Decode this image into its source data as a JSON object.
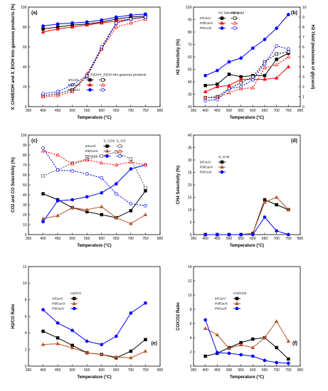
{
  "chart_data": [
    {
      "type": "line",
      "panel_label": "(a)",
      "xlabel": "Temperature (°C)",
      "ylabel": "X_CH4/EtOH and X_EtOH into gaseous products (%)",
      "xlim": [
        350,
        800
      ],
      "xticks": [
        350,
        400,
        450,
        500,
        550,
        600,
        650,
        700,
        750,
        800
      ],
      "ylim": [
        0,
        100
      ],
      "yticks": [
        0,
        20,
        40,
        60,
        80,
        100
      ],
      "legend_header": [
        "X_EtOH",
        "X_EtOH into gaseous products"
      ],
      "legend_labels": [
        "Ir/CeAl",
        "Pd/CeAl",
        "Pt/CeAl"
      ],
      "x": [
        400,
        450,
        500,
        550,
        600,
        650,
        700,
        750
      ],
      "series": [
        {
          "name": "Ir/CeAl",
          "color": "#000000",
          "marker": "square",
          "dash": false,
          "values": [
            78,
            80,
            82,
            83,
            85,
            88,
            90,
            91
          ]
        },
        {
          "name": "Pd/CeAl",
          "color": "#ff0000",
          "marker": "triangle",
          "dash": false,
          "values": [
            75,
            78,
            80,
            82,
            84,
            86,
            88,
            90
          ]
        },
        {
          "name": "Pt/CeAl",
          "color": "#0000ff",
          "marker": "circle",
          "dash": false,
          "values": [
            81,
            83,
            84,
            85,
            87,
            90,
            92,
            93
          ]
        },
        {
          "name": "Ir/CeAl",
          "color": "#000000",
          "marker": "square-open",
          "dash": true,
          "values": [
            11,
            13,
            17,
            30,
            58,
            84,
            88,
            90
          ]
        },
        {
          "name": "Pd/CeAl",
          "color": "#ff0000",
          "marker": "triangle-open",
          "dash": true,
          "values": [
            10,
            11,
            15,
            33,
            58,
            80,
            84,
            88
          ]
        },
        {
          "name": "Pt/CeAl",
          "color": "#0000ff",
          "marker": "circle-open",
          "dash": true,
          "values": [
            13,
            15,
            22,
            31,
            60,
            84,
            88,
            90
          ]
        }
      ]
    },
    {
      "type": "line",
      "panel_label": "(b)",
      "xlabel": "Temperature (°C)",
      "ylabel": "H2 Selectivity (%)",
      "ylabel2": "H2 Yield (mole/mole of glycerol)",
      "xlim": [
        350,
        800
      ],
      "xticks": [
        350,
        400,
        450,
        500,
        550,
        600,
        650,
        700,
        750,
        800
      ],
      "ylim": [
        20,
        100
      ],
      "yticks": [
        20,
        30,
        40,
        50,
        60,
        70,
        80,
        90,
        100
      ],
      "y2lim": [
        0,
        10
      ],
      "y2ticks": [
        0,
        1,
        2,
        3,
        4,
        5,
        6,
        7,
        8,
        9,
        10
      ],
      "legend_header": [
        "H2 Selectivity",
        "H2 Yield"
      ],
      "legend_labels": [
        "Ir/CeAl",
        "Pd/CeAl",
        "Pt/CeAl"
      ],
      "x": [
        400,
        450,
        500,
        550,
        600,
        650,
        700,
        750
      ],
      "series": [
        {
          "name": "Ir/CeAl",
          "color": "#000000",
          "marker": "square",
          "dash": false,
          "values": [
            37,
            38,
            46,
            44,
            45,
            45,
            58,
            63
          ]
        },
        {
          "name": "Pd/CeAl",
          "color": "#ff0000",
          "marker": "triangle",
          "dash": false,
          "values": [
            32,
            36,
            37,
            42,
            42,
            42,
            43,
            52
          ]
        },
        {
          "name": "Pt/CeAl",
          "color": "#0000ff",
          "marker": "circle",
          "dash": false,
          "values": [
            45,
            49,
            56,
            59,
            67,
            74,
            83,
            94
          ]
        },
        {
          "name": "Ir/CeAl",
          "color": "#000000",
          "marker": "square-open",
          "dash": true,
          "axis": "right",
          "values": [
            0.9,
            1.0,
            1.8,
            2.4,
            3.0,
            4.5,
            5.3,
            5.5
          ]
        },
        {
          "name": "Pd/CeAl",
          "color": "#ff0000",
          "marker": "triangle-open",
          "dash": true,
          "axis": "right",
          "values": [
            0.9,
            0.9,
            1.4,
            1.8,
            1.9,
            3.9,
            4.2,
            5.0
          ]
        },
        {
          "name": "Pt/CeAl",
          "color": "#0000ff",
          "marker": "circle-open",
          "dash": true,
          "axis": "right",
          "values": [
            0.6,
            0.7,
            1.8,
            2.0,
            2.7,
            4.3,
            6.1,
            5.8
          ]
        }
      ]
    },
    {
      "type": "line",
      "panel_label": "(c)",
      "xlabel": "Temperature (°C)",
      "ylabel": "CO2 and CO Selectivity (%)",
      "xlim": [
        350,
        800
      ],
      "xticks": [
        350,
        400,
        450,
        500,
        550,
        600,
        650,
        700,
        750,
        800
      ],
      "ylim": [
        0,
        100
      ],
      "yticks": [
        0,
        10,
        20,
        30,
        40,
        50,
        60,
        70,
        80,
        90,
        100
      ],
      "legend_header": [
        "S_CO2",
        "S_CO"
      ],
      "legend_labels": [
        "Ir/CeAl",
        "Pd/CeAl",
        "Pt/CeAl"
      ],
      "x": [
        400,
        450,
        500,
        550,
        600,
        650,
        700,
        750
      ],
      "series": [
        {
          "name": "Ir/CeAl",
          "color": "#000000",
          "marker": "square",
          "dash": false,
          "values": [
            41,
            35,
            27,
            23,
            20,
            17,
            24,
            44
          ]
        },
        {
          "name": "Pd/CeAl",
          "color": "#b5562a",
          "marker": "triangle",
          "dash": false,
          "values": [
            16,
            19,
            27,
            25,
            28,
            17,
            11,
            20
          ]
        },
        {
          "name": "Pt/CeAl",
          "color": "#0000ff",
          "marker": "circle",
          "dash": false,
          "values": [
            13,
            34,
            35,
            38,
            42,
            51,
            66,
            70
          ]
        },
        {
          "name": "Ir/CeAl",
          "color": "#555555",
          "marker": "square-open",
          "dash": true,
          "values": [
            59,
            65,
            72,
            76,
            79,
            83,
            76,
            47
          ]
        },
        {
          "name": "Pd/CeAl",
          "color": "#ff0000",
          "marker": "triangle-open",
          "dash": true,
          "values": [
            84,
            80,
            71,
            75,
            72,
            70,
            73,
            70
          ]
        },
        {
          "name": "Pt/CeAl",
          "color": "#0000ff",
          "marker": "circle-open",
          "dash": true,
          "values": [
            87,
            65,
            64,
            61,
            57,
            41,
            31,
            29
          ]
        }
      ]
    },
    {
      "type": "line",
      "panel_label": "(d)",
      "xlabel": "Temperature (°C)",
      "ylabel": "CH4 Selectivity (%)",
      "xlim": [
        350,
        800
      ],
      "xticks": [
        350,
        400,
        450,
        500,
        550,
        600,
        650,
        700,
        750,
        800
      ],
      "ylim": [
        0,
        40
      ],
      "yticks": [
        0,
        5,
        10,
        15,
        20,
        25,
        30,
        35,
        40
      ],
      "legend_header": [
        "S_CH4"
      ],
      "legend_labels": [
        "Ir/CeAl",
        "Pd/CeAl",
        "Pt/CeAl"
      ],
      "x": [
        400,
        450,
        500,
        550,
        600,
        650,
        700,
        750
      ],
      "series": [
        {
          "name": "Ir/CeAl",
          "color": "#000000",
          "marker": "square",
          "dash": false,
          "values": [
            0,
            0,
            0,
            0,
            0.5,
            14,
            12,
            10
          ]
        },
        {
          "name": "Pd/CeAl",
          "color": "#b5562a",
          "marker": "triangle",
          "dash": false,
          "values": [
            0,
            0,
            0,
            0,
            0.5,
            13,
            15,
            10
          ]
        },
        {
          "name": "Pt/CeAl",
          "color": "#0000ff",
          "marker": "circle",
          "dash": false,
          "values": [
            0,
            0,
            0,
            0,
            0,
            7,
            1.5,
            0
          ]
        }
      ]
    },
    {
      "type": "line",
      "panel_label": "(e)",
      "xlabel": "Temperature (°C)",
      "ylabel": "H2/CO Ratio",
      "xlim": [
        350,
        800
      ],
      "xticks": [
        350,
        400,
        450,
        500,
        550,
        600,
        650,
        700,
        750,
        800
      ],
      "ylim": [
        0,
        12
      ],
      "yticks": [
        0,
        2,
        4,
        6,
        8,
        10,
        12
      ],
      "legend_header": [
        "H2/CO"
      ],
      "legend_labels": [
        "Ir/CeAl",
        "Pd/CeAl",
        "Pt/CeAl"
      ],
      "x": [
        400,
        450,
        500,
        550,
        600,
        650,
        700,
        750
      ],
      "series": [
        {
          "name": "Ir/CeAl",
          "color": "#000000",
          "marker": "square",
          "dash": false,
          "values": [
            4.2,
            3.4,
            2.5,
            1.6,
            1.4,
            1.0,
            1.8,
            3.2
          ]
        },
        {
          "name": "Pd/CeAl",
          "color": "#b5562a",
          "marker": "triangle",
          "dash": false,
          "values": [
            2.6,
            2.7,
            2.2,
            1.6,
            1.4,
            1.1,
            1.0,
            1.8
          ]
        },
        {
          "name": "Pt/CeAl",
          "color": "#0000ff",
          "marker": "circle",
          "dash": false,
          "values": [
            6.8,
            5.2,
            4.3,
            3.0,
            2.6,
            3.6,
            6.4,
            7.6
          ]
        }
      ]
    },
    {
      "type": "line",
      "panel_label": "(f)",
      "xlabel": "Temperature (°C)",
      "ylabel": "CO/CO2 Ratio",
      "xlim": [
        350,
        800
      ],
      "xticks": [
        350,
        400,
        450,
        500,
        550,
        600,
        650,
        700,
        750,
        800
      ],
      "ylim": [
        0,
        14
      ],
      "yticks": [
        0,
        2,
        4,
        6,
        8,
        10,
        12,
        14
      ],
      "legend_header": [
        "CO/CO2"
      ],
      "legend_labels": [
        "Ir/CeAl",
        "Pd/CeAl",
        "Pt/CeAl"
      ],
      "x": [
        400,
        450,
        500,
        550,
        600,
        650,
        700,
        750
      ],
      "series": [
        {
          "name": "Ir/CeAl",
          "color": "#000000",
          "marker": "square",
          "dash": false,
          "values": [
            1.4,
            1.8,
            2.6,
            3.3,
            3.8,
            4.0,
            2.6,
            1.0
          ]
        },
        {
          "name": "Pd/CeAl",
          "color": "#b5562a",
          "marker": "triangle",
          "dash": false,
          "values": [
            5.3,
            4.4,
            2.5,
            3.0,
            2.6,
            4.0,
            6.3,
            3.5
          ]
        },
        {
          "name": "Pt/CeAl",
          "color": "#0000ff",
          "marker": "circle",
          "dash": false,
          "values": [
            6.5,
            1.9,
            1.8,
            1.6,
            1.4,
            0.8,
            0.5,
            0.4
          ]
        }
      ]
    }
  ]
}
